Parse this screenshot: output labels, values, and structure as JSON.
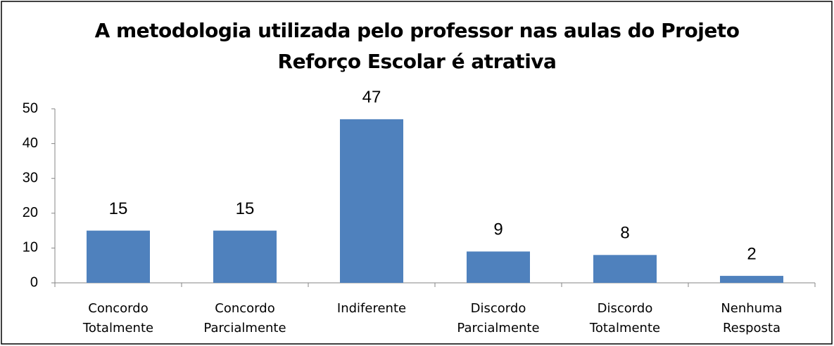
{
  "chart_data": {
    "type": "bar",
    "title": "A metodologia utilizada pelo professor nas aulas do Projeto Reforço Escolar é atrativa",
    "categories": [
      "Concordo Totalmente",
      "Concordo Parcialmente",
      "Indiferente",
      "Discordo Parcialmente",
      "Discordo Totalmente",
      "Nenhuma Resposta"
    ],
    "values": [
      15,
      15,
      47,
      9,
      8,
      2
    ],
    "color": "#4f81bd",
    "ylim": [
      0,
      50
    ],
    "yticks": [
      0,
      10,
      20,
      30,
      40,
      50
    ],
    "grid": false
  }
}
